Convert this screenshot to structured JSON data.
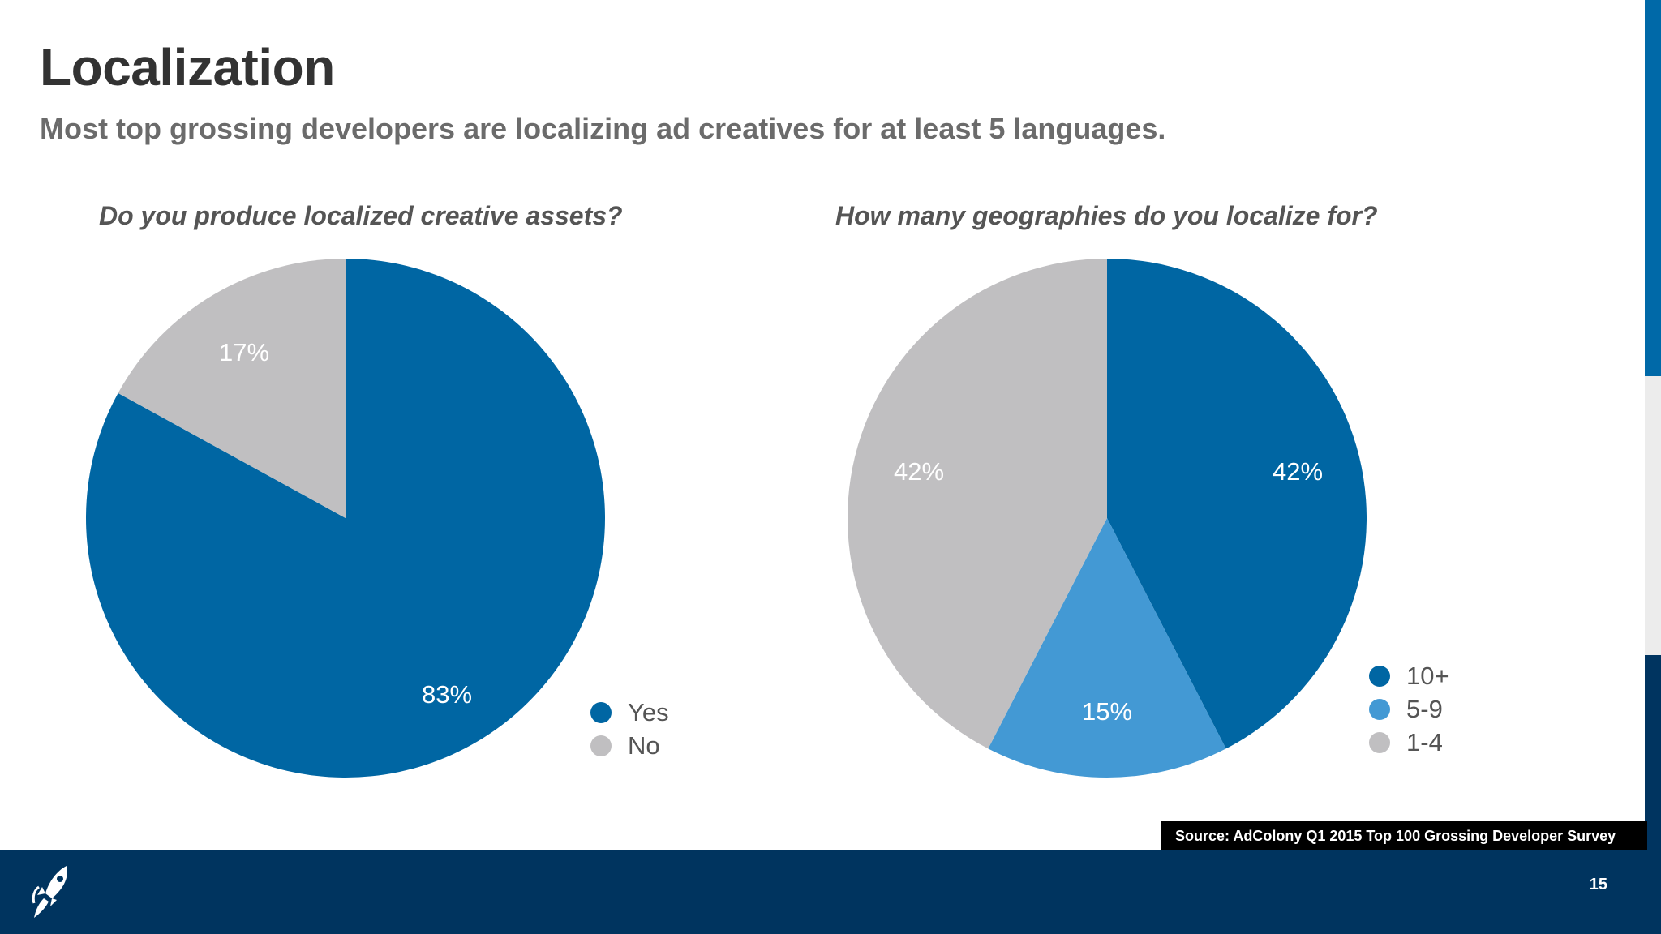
{
  "slide": {
    "title": "Localization",
    "subtitle": "Most top grossing developers are localizing ad creatives for at least 5 languages.",
    "source": "Source: AdColony Q1 2015 Top 100 Grossing Developer Survey",
    "page_number": "15",
    "logo_icon": "rocket-icon"
  },
  "colors": {
    "dark_blue": "#0066a3",
    "light_blue": "#4399d4",
    "gray": "#c0bfc1",
    "footer": "#00345f"
  },
  "chart_data": [
    {
      "type": "pie",
      "title": "Do you produce localized creative assets?",
      "slices": [
        {
          "label": "Yes",
          "value": 83,
          "display": "83%",
          "color": "#0066a3"
        },
        {
          "label": "No",
          "value": 17,
          "display": "17%",
          "color": "#c0bfc1"
        }
      ],
      "legend": "right"
    },
    {
      "type": "pie",
      "title": "How many geographies do you localize for?",
      "slices": [
        {
          "label": "10+",
          "value": 42,
          "display": "42%",
          "color": "#0066a3"
        },
        {
          "label": "5-9",
          "value": 15,
          "display": "15%",
          "color": "#4399d4"
        },
        {
          "label": "1-4",
          "value": 42,
          "display": "42%",
          "color": "#c0bfc1"
        }
      ],
      "legend": "right"
    }
  ]
}
